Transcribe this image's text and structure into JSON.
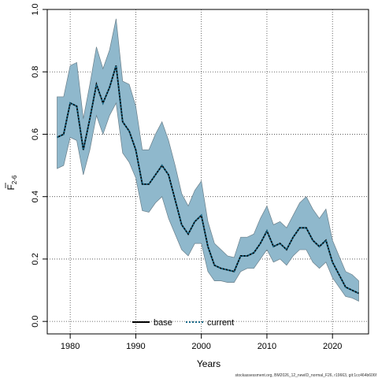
{
  "chart_data": {
    "type": "line",
    "xlabel": "Years",
    "ylabel_main": "F",
    "ylabel_sub": "2-6",
    "xlim": [
      1976.5,
      2025.5
    ],
    "ylim": [
      -0.04,
      1.0
    ],
    "x_ticks": [
      1980,
      1990,
      2000,
      2010,
      2020
    ],
    "y_ticks": [
      0.0,
      0.2,
      0.4,
      0.6,
      0.8,
      1.0
    ],
    "x_tick_labels": [
      "1980",
      "1990",
      "2000",
      "2010",
      "2020"
    ],
    "y_tick_labels": [
      "0.0",
      "0.2",
      "0.4",
      "0.6",
      "0.8",
      "1.0"
    ],
    "grid": true,
    "legend_position": "bottom",
    "legend": [
      {
        "label": "base",
        "style": "solid",
        "color": "#000000"
      },
      {
        "label": "current",
        "style": "dotted",
        "color": "#1a6a8a"
      }
    ],
    "band_color": "#8fb8cc",
    "band_edge_color": "#6a7f8a",
    "years": [
      1978,
      1979,
      1980,
      1981,
      1982,
      1983,
      1984,
      1985,
      1986,
      1987,
      1988,
      1989,
      1990,
      1991,
      1992,
      1993,
      1994,
      1995,
      1996,
      1997,
      1998,
      1999,
      2000,
      2001,
      2002,
      2003,
      2004,
      2005,
      2006,
      2007,
      2008,
      2009,
      2010,
      2011,
      2012,
      2013,
      2014,
      2015,
      2016,
      2017,
      2018,
      2019,
      2020,
      2021,
      2022,
      2023,
      2024
    ],
    "series": [
      {
        "name": "base",
        "values": [
          0.59,
          0.6,
          0.7,
          0.69,
          0.55,
          0.65,
          0.76,
          0.7,
          0.75,
          0.82,
          0.64,
          0.61,
          0.55,
          0.44,
          0.44,
          0.47,
          0.5,
          0.47,
          0.39,
          0.31,
          0.28,
          0.32,
          0.34,
          0.24,
          0.18,
          0.17,
          0.165,
          0.16,
          0.21,
          0.21,
          0.22,
          0.25,
          0.29,
          0.24,
          0.25,
          0.23,
          0.27,
          0.3,
          0.3,
          0.26,
          0.24,
          0.26,
          0.19,
          0.15,
          0.11,
          0.1,
          0.09
        ]
      },
      {
        "name": "current",
        "values": [
          0.59,
          0.6,
          0.7,
          0.69,
          0.55,
          0.65,
          0.76,
          0.7,
          0.75,
          0.82,
          0.64,
          0.61,
          0.55,
          0.44,
          0.44,
          0.47,
          0.5,
          0.47,
          0.39,
          0.31,
          0.28,
          0.32,
          0.34,
          0.24,
          0.18,
          0.17,
          0.165,
          0.16,
          0.21,
          0.21,
          0.22,
          0.25,
          0.29,
          0.24,
          0.25,
          0.23,
          0.27,
          0.3,
          0.3,
          0.26,
          0.24,
          0.26,
          0.19,
          0.15,
          0.11,
          0.1,
          0.09
        ]
      }
    ],
    "upper": [
      0.72,
      0.72,
      0.82,
      0.83,
      0.65,
      0.76,
      0.88,
      0.81,
      0.87,
      0.97,
      0.77,
      0.76,
      0.69,
      0.55,
      0.55,
      0.6,
      0.64,
      0.58,
      0.5,
      0.41,
      0.37,
      0.42,
      0.45,
      0.32,
      0.25,
      0.23,
      0.21,
      0.205,
      0.27,
      0.27,
      0.28,
      0.33,
      0.37,
      0.31,
      0.32,
      0.3,
      0.34,
      0.38,
      0.4,
      0.36,
      0.33,
      0.36,
      0.26,
      0.21,
      0.16,
      0.15,
      0.13
    ],
    "lower": [
      0.49,
      0.5,
      0.59,
      0.58,
      0.47,
      0.55,
      0.66,
      0.6,
      0.66,
      0.7,
      0.54,
      0.51,
      0.46,
      0.355,
      0.35,
      0.38,
      0.4,
      0.33,
      0.28,
      0.23,
      0.21,
      0.25,
      0.25,
      0.16,
      0.13,
      0.13,
      0.125,
      0.125,
      0.16,
      0.17,
      0.17,
      0.2,
      0.23,
      0.19,
      0.2,
      0.18,
      0.21,
      0.23,
      0.23,
      0.19,
      0.17,
      0.19,
      0.14,
      0.11,
      0.08,
      0.075,
      0.065
    ]
  },
  "footer_text": "stockassessment.org, BM2026_12_newID_normal_F26, r19663, git:1cc464b606f"
}
